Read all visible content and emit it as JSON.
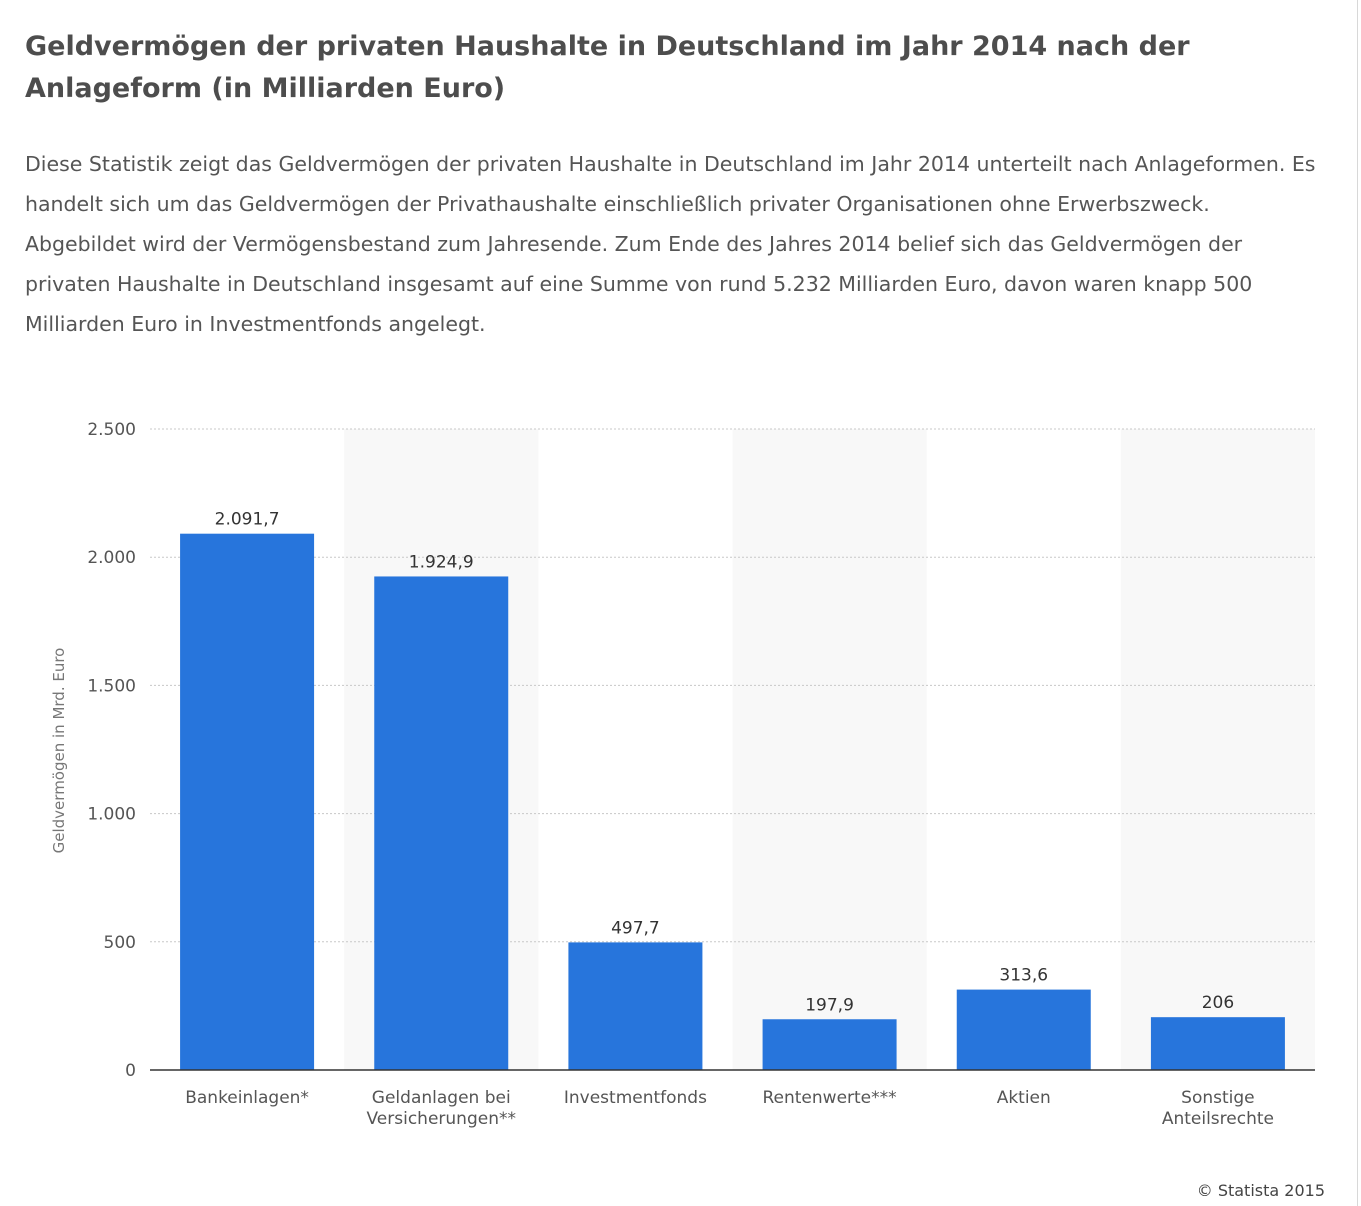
{
  "page": {
    "title": "Geldvermögen der privaten Haushalte in Deutschland im Jahr 2014 nach der Anlageform (in Milliarden Euro)",
    "description": "Diese Statistik zeigt das Geldvermögen der privaten Haushalte in Deutschland im Jahr 2014 unterteilt nach Anlageformen. Es handelt sich um das Geldvermögen der Privathaushalte einschließlich privater Organisationen ohne Erwerbszweck. Abgebildet wird der Vermögensbestand zum Jahresende. Zum Ende des Jahres 2014 belief sich das Geldvermögen der privaten Haushalte in Deutschland insgesamt auf eine Summe von rund 5.232 Milliarden Euro, davon waren knapp 500 Milliarden Euro in Investmentfonds angelegt.",
    "copyright": "© Statista 2015"
  },
  "colors": {
    "bar": "#2775dc",
    "band": "#f8f8f8",
    "grid": "#c8c8c8",
    "axis": "#333333",
    "text": "#555555"
  },
  "chart_data": {
    "type": "bar",
    "ylabel": "Geldvermögen in Mrd. Euro",
    "ylim": [
      0,
      2500
    ],
    "yticks": [
      0,
      500,
      1000,
      1500,
      2000,
      2500
    ],
    "ytick_labels": [
      "0",
      "500",
      "1.000",
      "1.500",
      "2.000",
      "2.500"
    ],
    "grid": true,
    "categories": [
      [
        "Bankeinlagen*"
      ],
      [
        "Geldanlagen bei",
        "Versicherungen**"
      ],
      [
        "Investmentfonds"
      ],
      [
        "Rentenwerte***"
      ],
      [
        "Aktien"
      ],
      [
        "Sonstige",
        "Anteilsrechte"
      ]
    ],
    "values": [
      2091.7,
      1924.9,
      497.7,
      197.9,
      313.6,
      206
    ],
    "value_labels": [
      "2.091,7",
      "1.924,9",
      "497,7",
      "197,9",
      "313,6",
      "206"
    ]
  }
}
